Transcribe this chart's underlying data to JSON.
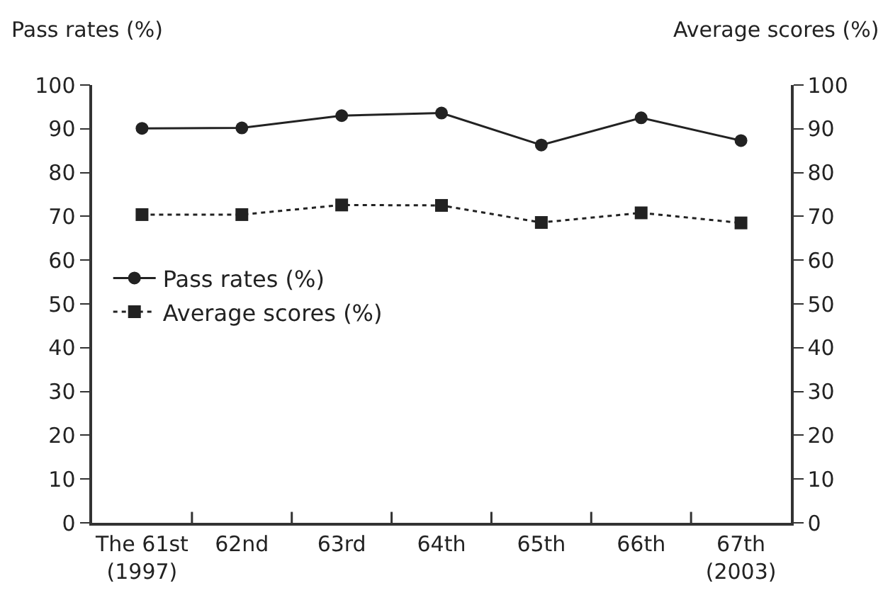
{
  "chart_data": {
    "type": "line",
    "ylabel": "Pass rates (%)",
    "y2label": "Average scores (%)",
    "categories": [
      "The 61st\n(1997)",
      "62nd",
      "63rd",
      "64th",
      "65th",
      "66th",
      "67th\n(2003)"
    ],
    "series": [
      {
        "name": "Pass rates (%)",
        "color": "#222222",
        "marker": "circle",
        "line_style": "solid",
        "values": [
          90.1,
          90.2,
          93.0,
          93.6,
          86.3,
          92.5,
          87.3
        ]
      },
      {
        "name": "Average scores (%)",
        "color": "#222222",
        "marker": "square",
        "line_style": "dotted",
        "axis": "y2",
        "values": [
          70.4,
          70.4,
          72.6,
          72.5,
          68.6,
          70.8,
          68.5
        ]
      }
    ],
    "ylim": [
      0,
      100
    ],
    "yticks": [
      0,
      10,
      20,
      30,
      40,
      50,
      60,
      70,
      80,
      90,
      100
    ],
    "y2lim": [
      0,
      100
    ],
    "y2ticks": [
      0,
      10,
      20,
      30,
      40,
      50,
      60,
      70,
      80,
      90,
      100
    ],
    "grid": false,
    "legend": "left"
  }
}
